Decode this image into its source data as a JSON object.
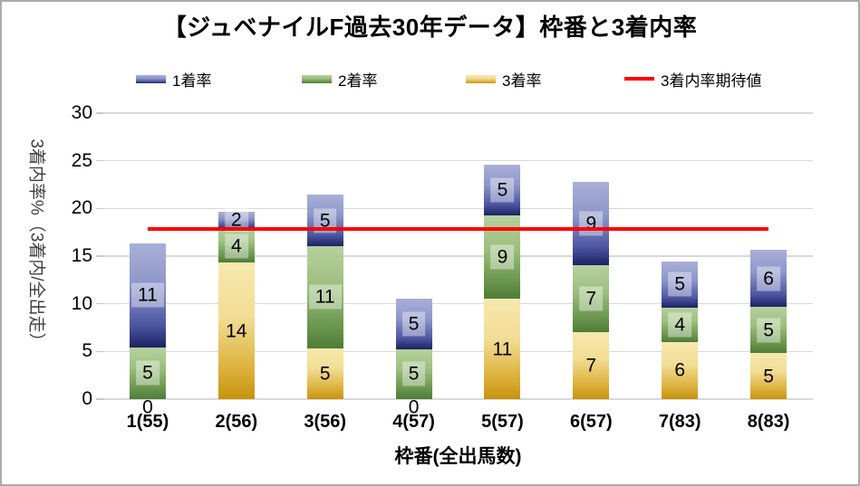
{
  "title": "【ジュベナイルF過去30年データ】枠番と3着内率",
  "chart_data": {
    "type": "bar",
    "subtype": "stacked-bars-with-reference-line",
    "title": "【ジュベナイルF過去30年データ】枠番と3着内率",
    "xlabel": "枠番(全出馬数)",
    "ylabel": "3着内率%（3着内/全出走）",
    "ylim": [
      0,
      30
    ],
    "y_ticks": [
      0,
      5,
      10,
      15,
      20,
      25,
      30
    ],
    "grid": "horizontal",
    "legend_position": "top",
    "categories": [
      "1(55)",
      "2(56)",
      "3(56)",
      "4(57)",
      "5(57)",
      "6(57)",
      "7(83)",
      "8(83)"
    ],
    "series": [
      {
        "name": "3着率",
        "stack_order": "bottom",
        "values": [
          0,
          14.29,
          5.36,
          0,
          10.53,
          7.02,
          6.02,
          4.82
        ],
        "labels": [
          "0",
          "14",
          "5",
          "0",
          "11",
          "7",
          "6",
          "5"
        ],
        "label_box": false,
        "gradient_colors": [
          "#f7e8ae",
          "#f2dd94",
          "#dcb13c",
          "#c6930c"
        ]
      },
      {
        "name": "2着率",
        "stack_order": "middle",
        "values": [
          5.45,
          3.57,
          10.71,
          5.26,
          8.77,
          7.02,
          3.61,
          4.82
        ],
        "labels": [
          "5",
          "4",
          "11",
          "5",
          "9",
          "7",
          "4",
          "5"
        ],
        "label_box": true,
        "gradient_colors": [
          "#b6d19e",
          "#9cbf7e",
          "#6b974e",
          "#4e7c38"
        ]
      },
      {
        "name": "1着率",
        "stack_order": "top",
        "values": [
          10.91,
          1.79,
          5.36,
          5.26,
          5.26,
          8.77,
          4.82,
          6.02
        ],
        "labels": [
          "11",
          "2",
          "5",
          "5",
          "5",
          "9",
          "5",
          "6"
        ],
        "label_box": true,
        "gradient_colors": [
          "#a8b0d7",
          "#8d96c9",
          "#4d57a2",
          "#1c2263"
        ]
      }
    ],
    "line": {
      "name": "3着内率期待値",
      "value": 17.86,
      "color": "#ff0000",
      "extent": "first-to-last-category-center"
    }
  }
}
